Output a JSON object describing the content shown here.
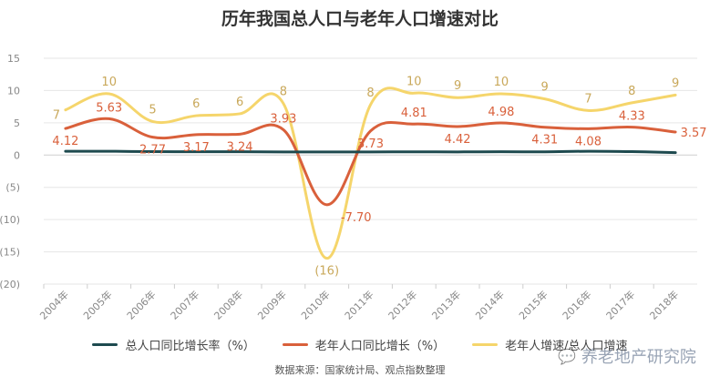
{
  "chart_data": {
    "type": "line",
    "title": "历年我国总人口与老年人口增速对比",
    "categories": [
      "2004年",
      "2005年",
      "2006年",
      "2007年",
      "2008年",
      "2009年",
      "2010年",
      "2011年",
      "2012年",
      "2013年",
      "2014年",
      "2015年",
      "2016年",
      "2017年",
      "2018年"
    ],
    "ylim": [
      -20,
      15
    ],
    "yticks": [
      15,
      10,
      5,
      0,
      -5,
      -10,
      -15,
      -20
    ],
    "ytick_labels": [
      "15",
      "10",
      "5",
      "0",
      "(5)",
      "(10)",
      "(15)",
      "(20)"
    ],
    "grid": true,
    "legend_position": "bottom",
    "series": [
      {
        "name": "总人口同比增长率（%）",
        "color": "#1e4a4f",
        "values": [
          0.59,
          0.59,
          0.53,
          0.52,
          0.51,
          0.49,
          0.48,
          0.48,
          0.5,
          0.49,
          0.52,
          0.5,
          0.59,
          0.53,
          0.38
        ],
        "labels": []
      },
      {
        "name": "老年人口同比增长（%）",
        "color": "#d9603b",
        "values": [
          4.12,
          5.63,
          2.77,
          3.17,
          3.24,
          3.93,
          -7.7,
          3.73,
          4.81,
          4.42,
          4.98,
          4.31,
          4.08,
          4.33,
          3.57
        ],
        "labels": [
          "4.12",
          "5.63",
          "2.77",
          "3.17",
          "3.24",
          "3.93",
          "-7.70",
          "3.73",
          "4.81",
          "4.42",
          "4.98",
          "4.31",
          "4.08",
          "4.33",
          "3.57"
        ]
      },
      {
        "name": "老年人增速/总人口增速",
        "color": "#f5d56b",
        "label_color": "#c9a85a",
        "values": [
          7,
          9.5,
          5.2,
          6.1,
          6.4,
          8,
          -16,
          7.8,
          9.6,
          8.9,
          9.5,
          8.7,
          6.9,
          8.1,
          9.3
        ],
        "labels": [
          "7",
          "10",
          "5",
          "6",
          "6",
          "8",
          "(16)",
          "8",
          "10",
          "9",
          "10",
          "9",
          "7",
          "8",
          "9"
        ]
      }
    ]
  },
  "source_note": "数据来源：国家统计局、观点指数整理",
  "watermark": {
    "icon": "wechat-icon",
    "text": "养老地产研究院"
  }
}
